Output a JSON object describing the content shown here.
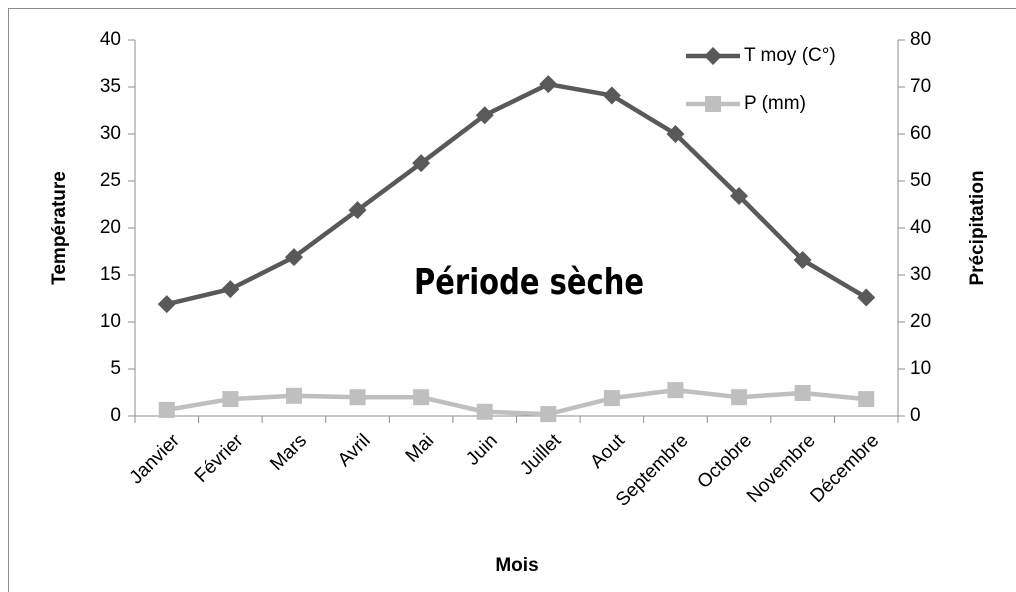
{
  "chart_data": {
    "type": "line",
    "annotation": "Période sèche",
    "xlabel": "Mois",
    "ylabel": "Température",
    "y2label": "Précipitation",
    "categories": [
      "Janvier",
      "Février",
      "Mars",
      "Avril",
      "Mai",
      "Juin",
      "Juillet",
      "Aout",
      "Septembre",
      "Octobre",
      "Novembre",
      "Décembre"
    ],
    "series": [
      {
        "name": "T moy (C°)",
        "color": "#595959",
        "marker": "diamond",
        "axis": "y",
        "values": [
          11.9,
          13.5,
          16.9,
          21.9,
          26.9,
          32.0,
          35.3,
          34.1,
          30.0,
          23.4,
          16.6,
          12.6
        ]
      },
      {
        "name": "P (mm)",
        "color": "#bfbfbf",
        "marker": "square",
        "axis": "y2",
        "values": [
          1.3,
          3.6,
          4.3,
          4.0,
          4.0,
          0.9,
          0.4,
          3.8,
          5.5,
          4.0,
          4.9,
          3.6
        ]
      }
    ],
    "ylim": [
      0,
      40
    ],
    "yticks": [
      0,
      5,
      10,
      15,
      20,
      25,
      30,
      35,
      40
    ],
    "y2lim": [
      0,
      80
    ],
    "y2ticks": [
      0,
      10,
      20,
      30,
      40,
      50,
      60,
      70,
      80
    ],
    "legend": "upper right",
    "grid": false
  }
}
